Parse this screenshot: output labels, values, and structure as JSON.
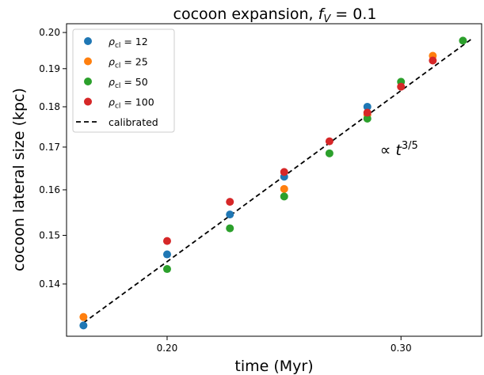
{
  "chart_data": {
    "type": "scatter",
    "title": "cocoon expansion, f_V = 0.1",
    "title_parts": {
      "main": "cocoon expansion, ",
      "sym": "f",
      "sub": "V",
      "tail": " = 0.1"
    },
    "xlabel": "time (Myr)",
    "ylabel": "cocoon lateral size (kpc)",
    "x_scale": "log",
    "y_scale": "log",
    "xlim": [
      0.168,
      0.345
    ],
    "ylim": [
      0.13,
      0.2025
    ],
    "x_ticks": [
      {
        "value": 0.2,
        "label": "0.20"
      },
      {
        "value": 0.3,
        "label": "0.30"
      }
    ],
    "y_ticks": [
      {
        "value": 0.14,
        "label": "0.14"
      },
      {
        "value": 0.15,
        "label": "0.15"
      },
      {
        "value": 0.16,
        "label": "0.16"
      },
      {
        "value": 0.17,
        "label": "0.17"
      },
      {
        "value": 0.18,
        "label": "0.18"
      },
      {
        "value": 0.19,
        "label": "0.19"
      },
      {
        "value": 0.2,
        "label": "0.20"
      }
    ],
    "grid": false,
    "legend_position": "top-left",
    "series": [
      {
        "name": "ρ_cl = 12",
        "name_sym": "ρ",
        "name_sub": "cl",
        "name_tail": " = 12",
        "color": "#1f77b4",
        "points": [
          [
            0.173,
            0.132
          ],
          [
            0.2,
            0.146
          ],
          [
            0.223,
            0.1545
          ],
          [
            0.245,
            0.163
          ],
          [
            0.283,
            0.18
          ]
        ]
      },
      {
        "name": "ρ_cl = 25",
        "name_sym": "ρ",
        "name_sub": "cl",
        "name_tail": " = 25",
        "color": "#ff7f0e",
        "points": [
          [
            0.173,
            0.1336
          ],
          [
            0.245,
            0.1602
          ],
          [
            0.283,
            0.178
          ],
          [
            0.317,
            0.1935
          ]
        ]
      },
      {
        "name": "ρ_cl = 50",
        "name_sym": "ρ",
        "name_sub": "cl",
        "name_tail": " = 50",
        "color": "#2ca02c",
        "points": [
          [
            0.2,
            0.143
          ],
          [
            0.223,
            0.1515
          ],
          [
            0.245,
            0.1585
          ],
          [
            0.265,
            0.1685
          ],
          [
            0.283,
            0.177
          ],
          [
            0.3,
            0.1865
          ],
          [
            0.334,
            0.1977
          ]
        ]
      },
      {
        "name": "ρ_cl = 100",
        "name_sym": "ρ",
        "name_sub": "cl",
        "name_tail": " = 100",
        "color": "#d62728",
        "points": [
          [
            0.2,
            0.1488
          ],
          [
            0.223,
            0.1573
          ],
          [
            0.245,
            0.1641
          ],
          [
            0.265,
            0.1714
          ],
          [
            0.283,
            0.1785
          ],
          [
            0.3,
            0.1852
          ],
          [
            0.317,
            0.1922
          ]
        ]
      }
    ],
    "fit": {
      "name": "calibrated",
      "color": "#000000",
      "style": "dashed",
      "points": [
        [
          0.173,
          0.1325
        ],
        [
          0.34,
          0.1985
        ]
      ]
    },
    "annotation": {
      "prefix": "∝ ",
      "sym": "t",
      "exponent": "3/5",
      "x": 0.283,
      "y": 0.1715
    }
  }
}
